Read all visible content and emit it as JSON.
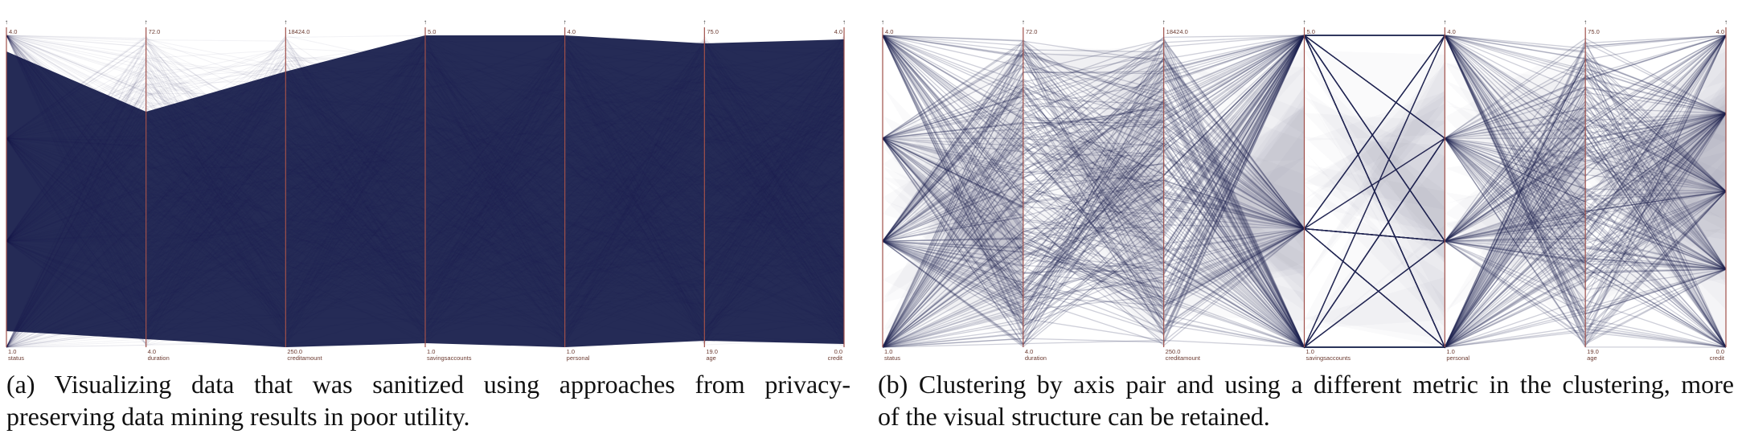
{
  "figure": {
    "caption_a": {
      "label": "(a)",
      "line1": "Visualizing data that was sanitized using approaches from privacy-",
      "line2": "preserving data mining results in poor utility."
    },
    "caption_b": {
      "label": "(b)",
      "line1": "Clustering by axis pair and using a different metric in the clustering, more",
      "line2": "of the visual structure can be retained."
    }
  },
  "colors": {
    "axis": "#a0504a",
    "line": "#1e2451",
    "label": "#6b3a30"
  },
  "chart_data": [
    {
      "type": "parallel-coordinates",
      "panel": "a",
      "axes": [
        {
          "name": "status",
          "max": "4.0",
          "min": "1.0"
        },
        {
          "name": "duration",
          "max": "72.0",
          "min": "4.0"
        },
        {
          "name": "creditamount",
          "max": "18424.0",
          "min": "250.0"
        },
        {
          "name": "savingsaccounts",
          "max": "5.0",
          "min": "1.0"
        },
        {
          "name": "personal",
          "max": "4.0",
          "min": "1.0"
        },
        {
          "name": "age",
          "max": "75.0",
          "min": "19.0"
        },
        {
          "name": "credit",
          "max": "4.0",
          "min": "0.0"
        }
      ]
    },
    {
      "type": "parallel-coordinates",
      "panel": "b",
      "axes": [
        {
          "name": "status",
          "max": "4.0",
          "min": "1.0"
        },
        {
          "name": "duration",
          "max": "72.0",
          "min": "4.0"
        },
        {
          "name": "creditamount",
          "max": "18424.0",
          "min": "250.0"
        },
        {
          "name": "savingsaccounts",
          "max": "5.0",
          "min": "1.0"
        },
        {
          "name": "personal",
          "max": "4.0",
          "min": "1.0"
        },
        {
          "name": "age",
          "max": "75.0",
          "min": "19.0"
        },
        {
          "name": "credit",
          "max": "4.0",
          "min": "0.0"
        }
      ]
    }
  ]
}
